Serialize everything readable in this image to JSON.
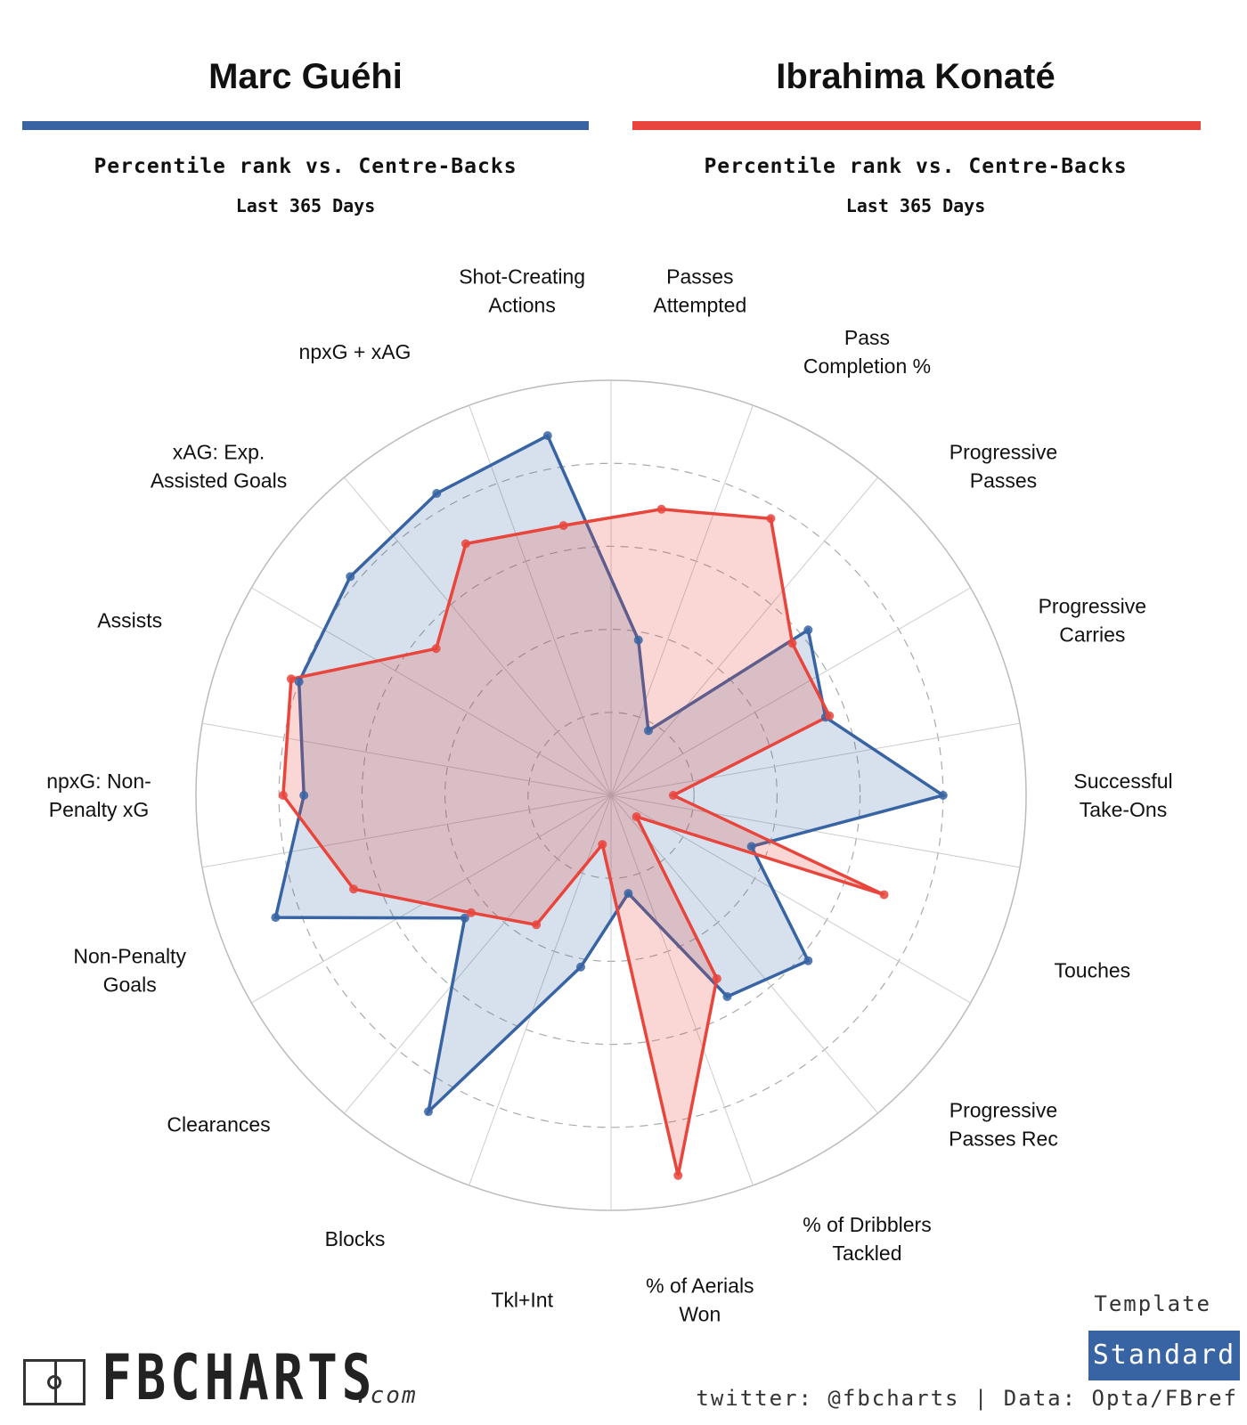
{
  "players": [
    {
      "name": "Marc Guéhi",
      "color": "#3864a3",
      "subtitle": "Percentile rank vs. Centre-Backs",
      "period": "Last 365 Days"
    },
    {
      "name": "Ibrahima Konaté",
      "color": "#e8453c",
      "subtitle": "Percentile rank vs. Centre-Backs",
      "period": "Last 365 Days"
    }
  ],
  "chart_data": {
    "type": "radar",
    "range": [
      0,
      100
    ],
    "rings": [
      20,
      40,
      60,
      80,
      100
    ],
    "categories": [
      "Passes\nAttempted",
      "Pass\nCompletion %",
      "Progressive\nPasses",
      "Progressive\nCarries",
      "Successful\nTake-Ons",
      "Touches",
      "Progressive\nPasses Rec",
      "% of Dribblers\nTackled",
      "% of Aerials\nWon",
      "Tkl+Int",
      "Blocks",
      "Clearances",
      "Non-Penalty\nGoals",
      "npxG: Non-\nPenalty xG",
      "Assists",
      "xAG: Exp.\nAssisted Goals",
      "npxG + xAG",
      "Shot-Creating\nActions"
    ],
    "series": [
      {
        "name": "Marc Guéhi",
        "color": "#3864a3",
        "values": [
          38,
          18,
          62,
          55,
          80,
          36,
          62,
          56,
          24,
          42,
          88,
          46,
          86,
          74,
          80,
          82,
          84,
          88
        ]
      },
      {
        "name": "Ibrahima Konaté",
        "color": "#e8453c",
        "values": [
          70,
          77,
          57,
          56,
          15,
          70,
          8,
          51,
          93,
          12,
          36,
          44,
          66,
          79,
          82,
          55,
          70,
          66
        ]
      }
    ]
  },
  "branding": {
    "logo_text": "FBCHARTS",
    "logo_suffix": ".com",
    "template_label": "Template",
    "template_value": "Standard",
    "credit": "twitter: @fbcharts | Data: Opta/FBref"
  }
}
